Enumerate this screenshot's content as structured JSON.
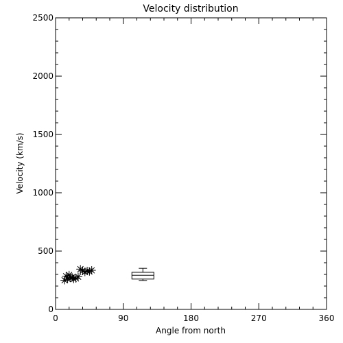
{
  "chart_data": {
    "type": "scatter",
    "title": "Velocity distribution",
    "xlabel": "Angle from north",
    "ylabel": "Velocity (km/s)",
    "xlim": [
      0,
      360
    ],
    "ylim": [
      0,
      2500
    ],
    "xticks": [
      0,
      90,
      180,
      270,
      360
    ],
    "yticks": [
      0,
      500,
      1000,
      1500,
      2000,
      2500
    ],
    "grid": false,
    "legend": "none",
    "marker": "asterisk",
    "series": [
      {
        "x": [
          12,
          14,
          16,
          18,
          20,
          22,
          24,
          27,
          30,
          33,
          36,
          39,
          42,
          45,
          48
        ],
        "y": [
          250,
          285,
          260,
          295,
          270,
          275,
          260,
          265,
          280,
          345,
          330,
          320,
          330,
          325,
          335
        ]
      }
    ],
    "boxplot": {
      "x": 116,
      "min": 248,
      "q1": 260,
      "median": 293,
      "q3": 318,
      "max": 352
    },
    "colors": {
      "axis": "#000000",
      "marker": "#000000",
      "background": "#ffffff"
    }
  }
}
